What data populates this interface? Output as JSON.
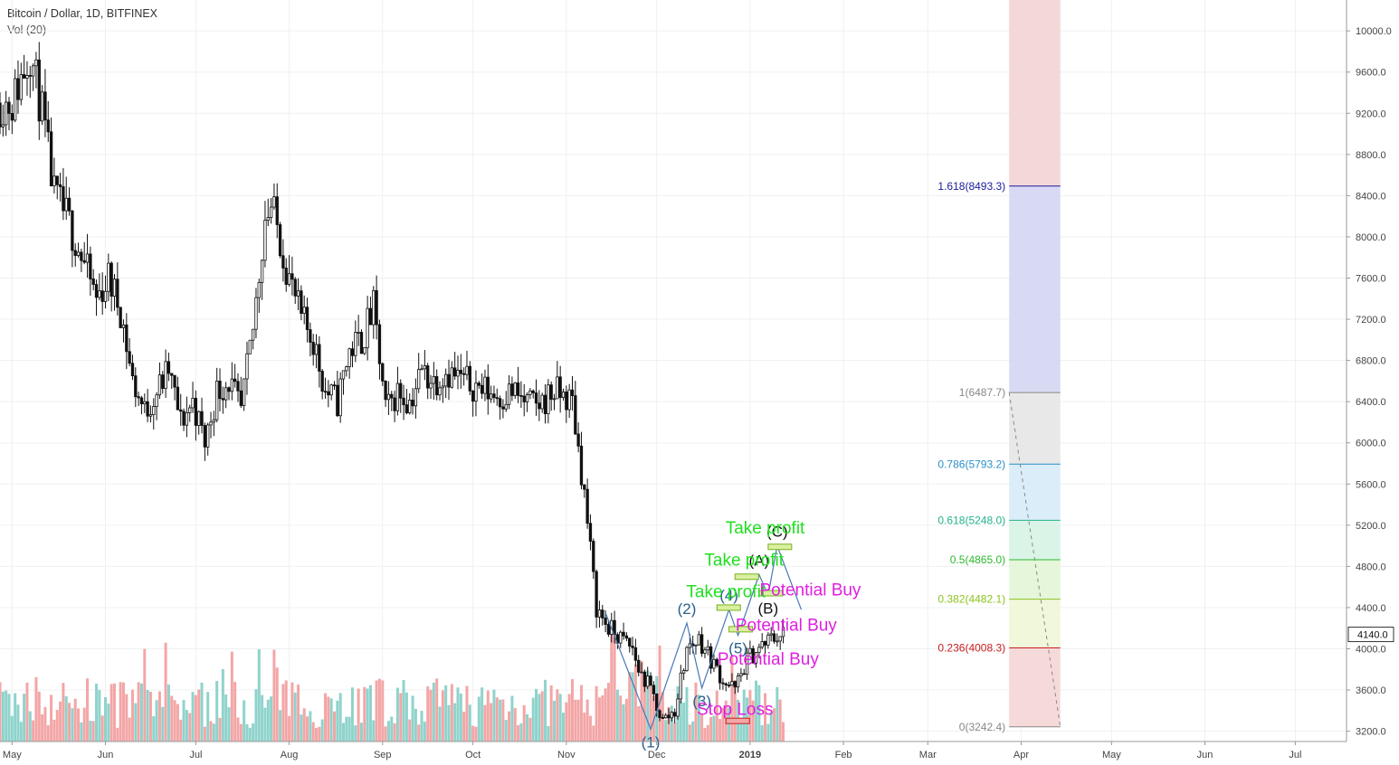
{
  "header": {
    "title": "Bitcoin / Dollar, 1D, BITFINEX",
    "volume_label": "Vol (20)"
  },
  "colors": {
    "up": "#26a69a",
    "down": "#ef5350",
    "vol_up": "#8fd3cc",
    "vol_down": "#f3a6a6",
    "grid": "#eef0f3",
    "axis_text": "#444444",
    "wave_blue": "#2b5e8c",
    "take_profit": "#1fe01f",
    "potential_buy": "#e01fe0",
    "fib_upper_band": "#d4d6f3",
    "fib_top_band": "#f3d4d4"
  },
  "chart_data": {
    "type": "candlestick",
    "symbol": "Bitcoin / Dollar",
    "interval": "1D",
    "exchange": "BITFINEX",
    "y_axis": {
      "ticks": [
        "10000.0",
        "9600.0",
        "9200.0",
        "8800.0",
        "8400.0",
        "8000.0",
        "7600.0",
        "7200.0",
        "6800.0",
        "6400.0",
        "6000.0",
        "5600.0",
        "5200.0",
        "4800.0",
        "4400.0",
        "4000.0",
        "3600.0",
        "3200.0"
      ],
      "range": [
        3100,
        10300
      ],
      "last_price": "4140.0",
      "last_value": 4140
    },
    "x_axis": {
      "labels": [
        "May",
        "Jun",
        "Jul",
        "Aug",
        "Sep",
        "Oct",
        "Nov",
        "Dec",
        "2019",
        "Feb",
        "Mar",
        "Apr",
        "May",
        "Jun",
        "Jul"
      ],
      "label_days": [
        0,
        31,
        61,
        92,
        123,
        153,
        184,
        214,
        245,
        276,
        304,
        335,
        365,
        396,
        426
      ],
      "visible_days": [
        -4,
        443
      ]
    },
    "price_path": {
      "days": [
        0,
        6,
        10,
        14,
        18,
        22,
        28,
        32,
        36,
        40,
        44,
        48,
        52,
        56,
        60,
        64,
        68,
        72,
        76,
        80,
        84,
        86,
        88,
        92,
        96,
        100,
        104,
        108,
        112,
        116,
        120,
        124,
        128,
        132,
        136,
        140,
        144,
        150,
        154,
        158,
        162,
        166,
        170,
        174,
        180,
        186,
        190,
        194,
        198,
        202,
        206,
        208,
        212,
        216,
        220,
        224,
        228,
        232,
        236,
        240,
        244,
        248,
        252,
        256
      ],
      "closes": [
        9300,
        9800,
        9200,
        8400,
        8200,
        7900,
        7400,
        7600,
        7300,
        6600,
        6300,
        6500,
        6700,
        6200,
        6400,
        6000,
        6500,
        6600,
        6300,
        7100,
        8200,
        8300,
        8100,
        7600,
        7200,
        7000,
        6500,
        6400,
        6900,
        7000,
        7300,
        6300,
        6500,
        6400,
        6700,
        6600,
        6700,
        6600,
        6550,
        6500,
        6450,
        6500,
        6400,
        6350,
        6500,
        6400,
        5500,
        4400,
        4200,
        4100,
        4000,
        3800,
        3600,
        3300,
        3400,
        4000,
        4100,
        3900,
        3700,
        3600,
        3900,
        4000,
        4100,
        4150
      ]
    },
    "volume_style": "daily bars, relative height only",
    "waves": {
      "labels": [
        "(1)",
        "(2)",
        "(3)",
        "(4)",
        "(5)",
        "(A)",
        "(B)",
        "(C)"
      ],
      "points": [
        {
          "label": "(1)",
          "day": 212,
          "price": 3220
        },
        {
          "label": "(2)",
          "day": 224,
          "price": 4250
        },
        {
          "label": "(3)",
          "day": 229,
          "price": 3620
        },
        {
          "label": "(4)",
          "day": 238,
          "price": 4380
        },
        {
          "label": "(5)",
          "day": 241,
          "price": 4130
        },
        {
          "label": "(A)",
          "day": 248,
          "price": 4720
        },
        {
          "label": "(B)",
          "day": 251,
          "price": 4520
        },
        {
          "label": "(C)",
          "day": 254,
          "price": 5000
        }
      ]
    },
    "annotations": [
      {
        "text": "Take profit",
        "day": 250,
        "price": 5120,
        "kind": "take_profit"
      },
      {
        "text": "Take profit",
        "day": 243,
        "price": 4810,
        "kind": "take_profit"
      },
      {
        "text": "Take profit",
        "day": 237,
        "price": 4500,
        "kind": "take_profit"
      },
      {
        "text": "Potential Buy",
        "day": 265,
        "price": 4520,
        "kind": "potential_buy"
      },
      {
        "text": "Potential Buy",
        "day": 257,
        "price": 4175,
        "kind": "potential_buy"
      },
      {
        "text": "Potential Buy",
        "day": 251,
        "price": 3845,
        "kind": "potential_buy"
      },
      {
        "text": "Stop Loss",
        "day": 240,
        "price": 3360,
        "kind": "potential_buy"
      }
    ],
    "fib_levels": [
      {
        "label": "1.618(8493.3)",
        "value": 8493.3,
        "color": "#1b1b9c",
        "band": "#d4d6f3"
      },
      {
        "label": "1(6487.7)",
        "value": 6487.7,
        "color": "#888888",
        "band": "#e6e6e6"
      },
      {
        "label": "0.786(5793.2)",
        "value": 5793.2,
        "color": "#2b90c8",
        "band": "#d7ebf7"
      },
      {
        "label": "0.618(5248.0)",
        "value": 5248.0,
        "color": "#22b38a",
        "band": "#d6f3e6"
      },
      {
        "label": "0.5(4865.0)",
        "value": 4865.0,
        "color": "#2cb82c",
        "band": "#e2f5d6"
      },
      {
        "label": "0.382(4482.1)",
        "value": 4482.1,
        "color": "#8cc21e",
        "band": "#f0f6d6"
      },
      {
        "label": "0.236(4008.3)",
        "value": 4008.3,
        "color": "#c81e1e",
        "band": "#f5d6d6"
      },
      {
        "label": "0(3242.4)",
        "value": 3242.4,
        "color": "#888888",
        "band": ""
      }
    ],
    "fib_range_days": [
      331,
      348
    ],
    "fib_top_value": 10300
  }
}
